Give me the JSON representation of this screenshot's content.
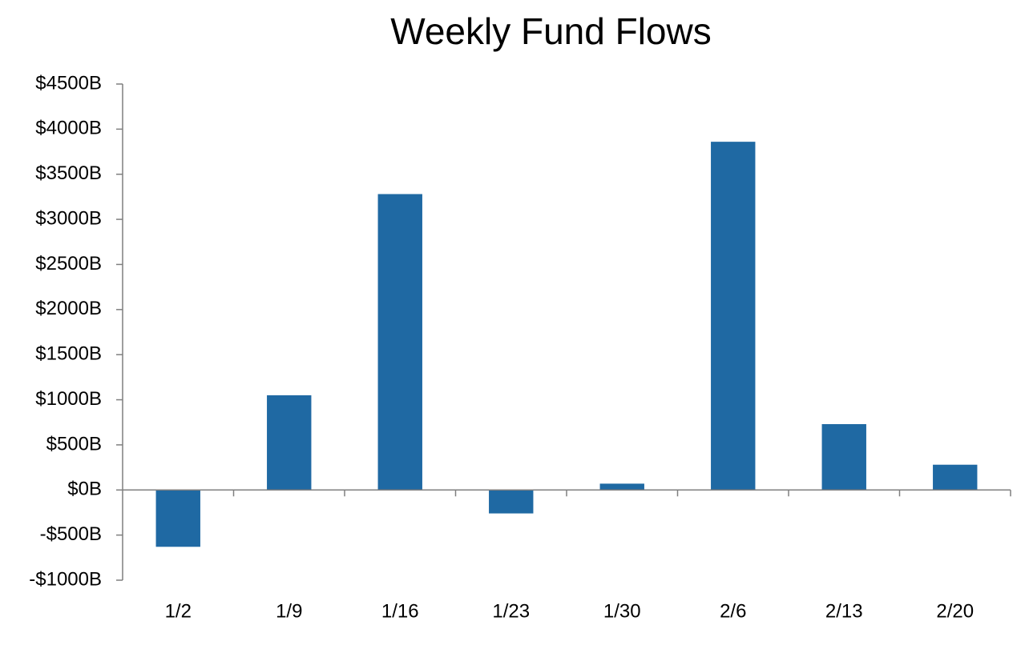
{
  "chart_data": {
    "type": "bar",
    "title": "Weekly Fund Flows",
    "xlabel": "",
    "ylabel": "",
    "categories": [
      "1/2",
      "1/9",
      "1/16",
      "1/23",
      "1/30",
      "2/6",
      "2/13",
      "2/20"
    ],
    "values": [
      -630,
      1050,
      3280,
      -260,
      70,
      3860,
      730,
      280
    ],
    "ylim": [
      -1000,
      4500
    ],
    "yticks": [
      -1000,
      -500,
      0,
      500,
      1000,
      1500,
      2000,
      2500,
      3000,
      3500,
      4000,
      4500
    ],
    "ytick_labels": [
      "-$1000B",
      "-$500B",
      "$0B",
      "$500B",
      "$1000B",
      "$1500B",
      "$2000B",
      "$2500B",
      "$3000B",
      "$3500B",
      "$4000B",
      "$4500B"
    ],
    "grid": false,
    "legend": "none",
    "bar_color": "#1f69a3"
  }
}
